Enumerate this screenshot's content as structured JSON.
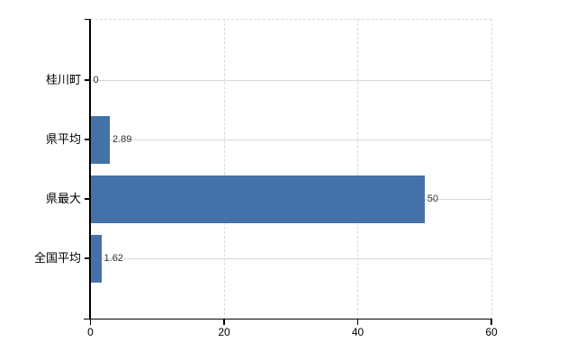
{
  "chart_data": {
    "type": "bar",
    "orientation": "horizontal",
    "title": "",
    "xlabel": "",
    "ylabel": "",
    "categories": [
      "桂川町",
      "県平均",
      "県最大",
      "全国平均"
    ],
    "values": [
      0,
      2.89,
      50,
      1.62
    ],
    "value_labels": [
      "0",
      "2.89",
      "50",
      "1.62"
    ],
    "xlim": [
      0,
      60
    ],
    "x_ticks": [
      0,
      20,
      40,
      60
    ],
    "x_tick_labels": [
      "0",
      "20",
      "40",
      "60"
    ],
    "grid": true,
    "legend": false,
    "colors": {
      "bar": "#4472a8",
      "axis": "#000000",
      "grid_horizontal": "#d6dad6",
      "grid_vertical": "#d9d9d9",
      "category_label": "#000000",
      "x_tick_label": "#000000",
      "value_label": "#333333",
      "background": "#ffffff"
    }
  }
}
